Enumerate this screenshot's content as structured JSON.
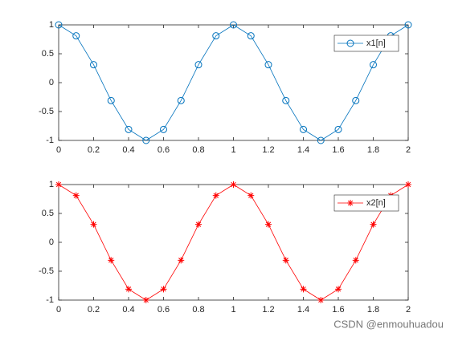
{
  "chart_data": [
    {
      "type": "line",
      "x": [
        0,
        0.1,
        0.2,
        0.3,
        0.4,
        0.5,
        0.6,
        0.7,
        0.8,
        0.9,
        1,
        1.1,
        1.2,
        1.3,
        1.4,
        1.5,
        1.6,
        1.7,
        1.8,
        1.9,
        2
      ],
      "series": [
        {
          "name": "x1[n]",
          "color": "#0072BD",
          "marker": "o",
          "values": [
            1,
            0.81,
            0.31,
            -0.31,
            -0.81,
            -1,
            -0.81,
            -0.31,
            0.31,
            0.81,
            1,
            0.81,
            0.31,
            -0.31,
            -0.81,
            -1,
            -0.81,
            -0.31,
            0.31,
            0.81,
            1
          ]
        }
      ],
      "xlim": [
        0,
        2
      ],
      "xticks": [
        0,
        0.2,
        0.4,
        0.6,
        0.8,
        1,
        1.2,
        1.4,
        1.6,
        1.8,
        2
      ],
      "ylim": [
        -1,
        1
      ],
      "yticks": [
        -1,
        -0.5,
        0,
        0.5,
        1
      ],
      "legend": "northeast"
    },
    {
      "type": "line",
      "x": [
        0,
        0.1,
        0.2,
        0.3,
        0.4,
        0.5,
        0.6,
        0.7,
        0.8,
        0.9,
        1,
        1.1,
        1.2,
        1.3,
        1.4,
        1.5,
        1.6,
        1.7,
        1.8,
        1.9,
        2
      ],
      "series": [
        {
          "name": "x2[n]",
          "color": "#FF0000",
          "marker": "*",
          "values": [
            1,
            0.81,
            0.31,
            -0.31,
            -0.81,
            -1,
            -0.81,
            -0.31,
            0.31,
            0.81,
            1,
            0.81,
            0.31,
            -0.31,
            -0.81,
            -1,
            -0.81,
            -0.31,
            0.31,
            0.81,
            1
          ]
        }
      ],
      "xlim": [
        0,
        2
      ],
      "xticks": [
        0,
        0.2,
        0.4,
        0.6,
        0.8,
        1,
        1.2,
        1.4,
        1.6,
        1.8,
        2
      ],
      "ylim": [
        -1,
        1
      ],
      "yticks": [
        -1,
        -0.5,
        0,
        0.5,
        1
      ],
      "legend": "northeast"
    }
  ],
  "watermark": "CSDN @enmouhuadou"
}
